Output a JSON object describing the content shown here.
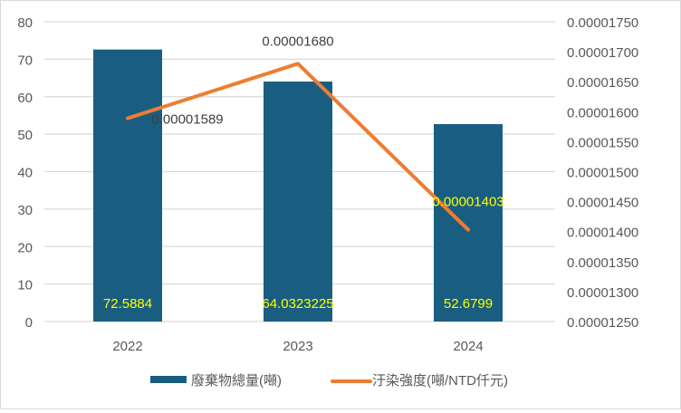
{
  "chart_data": {
    "type": "bar+line",
    "categories": [
      "2022",
      "2023",
      "2024"
    ],
    "series": [
      {
        "name": "廢棄物總量(噸)",
        "type": "bar",
        "axis": "left",
        "values": [
          72.5884,
          64.0323225,
          52.6799
        ],
        "labels": [
          "72.5884",
          "64.0323225",
          "52.6799"
        ],
        "color": "#195e80",
        "label_color": "#ffff00"
      },
      {
        "name": "汙染強度(噸/NTD仟元)",
        "type": "line",
        "axis": "right",
        "values": [
          1.589e-05,
          1.68e-05,
          1.403e-05
        ],
        "labels": [
          "0.00001589",
          "0.00001680",
          "0.00001403"
        ],
        "color": "#ed7d31"
      }
    ],
    "left_axis": {
      "ylim": [
        0,
        80
      ],
      "ticks": [
        "0",
        "10",
        "20",
        "30",
        "40",
        "50",
        "60",
        "70",
        "80"
      ]
    },
    "right_axis": {
      "ylim": [
        1.25e-05,
        1.75e-05
      ],
      "ticks": [
        "0.00001250",
        "0.00001300",
        "0.00001350",
        "0.00001400",
        "0.00001450",
        "0.00001500",
        "0.00001550",
        "0.00001600",
        "0.00001650",
        "0.00001700",
        "0.00001750"
      ]
    },
    "grid": true,
    "legend": "bottom"
  }
}
